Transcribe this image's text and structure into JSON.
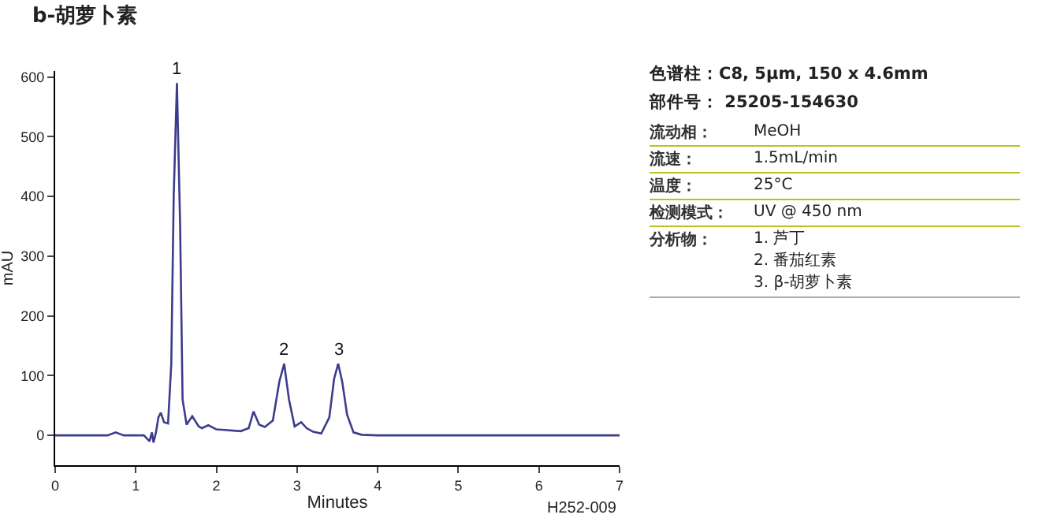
{
  "chart_data": [
    {
      "type": "line",
      "title": "b-胡萝卜素",
      "xlabel": "Minutes",
      "ylabel": "mAU",
      "x": [
        0,
        0.65,
        0.75,
        0.85,
        1.1,
        1.17,
        1.2,
        1.22,
        1.25,
        1.28,
        1.31,
        1.35,
        1.4,
        1.44,
        1.47,
        1.51,
        1.55,
        1.58,
        1.63,
        1.7,
        1.78,
        1.82,
        1.9,
        2.0,
        2.1,
        2.3,
        2.4,
        2.46,
        2.53,
        2.6,
        2.7,
        2.78,
        2.84,
        2.9,
        2.97,
        3.05,
        3.12,
        3.2,
        3.3,
        3.4,
        3.46,
        3.51,
        3.56,
        3.62,
        3.7,
        3.8,
        4.0,
        7
      ],
      "series": [
        {
          "color": "#3c3c8c",
          "values": [
            0,
            0,
            5,
            0,
            0,
            -10,
            5,
            -12,
            5,
            30,
            38,
            22,
            20,
            120,
            400,
            590,
            350,
            60,
            18,
            32,
            15,
            12,
            17,
            10,
            9,
            7,
            12,
            40,
            18,
            14,
            25,
            90,
            120,
            60,
            15,
            22,
            12,
            6,
            3,
            30,
            95,
            120,
            90,
            35,
            5,
            1,
            0,
            0
          ]
        }
      ],
      "xlim": [
        0,
        7
      ],
      "xticks": [
        0,
        1,
        2,
        3,
        4,
        5,
        6,
        7
      ],
      "ylim": [
        -50,
        610
      ],
      "yticks": [
        0,
        100,
        200,
        300,
        400,
        500,
        600
      ],
      "grid": false,
      "marker": "none",
      "line_style": "solid",
      "annotations": [
        {
          "text": "1",
          "x": 1.51,
          "y": 590
        },
        {
          "text": "2",
          "x": 2.84,
          "y": 120
        },
        {
          "text": "3",
          "x": 3.51,
          "y": 120
        },
        "H252-009"
      ]
    },
    {
      "type": "other",
      "annotations": [
        "色谱柱：C8, 5μm, 150 x 4.6mm",
        "部件号：  25205-154630",
        "流动相：",
        "MeOH",
        "流速：",
        "1.5mL/min",
        "温度：",
        "25°C",
        "检测模式：",
        "UV @ 450 nm",
        "分析物：",
        "1. 芦丁\n2. 番茄红素\n3. β-胡萝卜素"
      ]
    }
  ]
}
